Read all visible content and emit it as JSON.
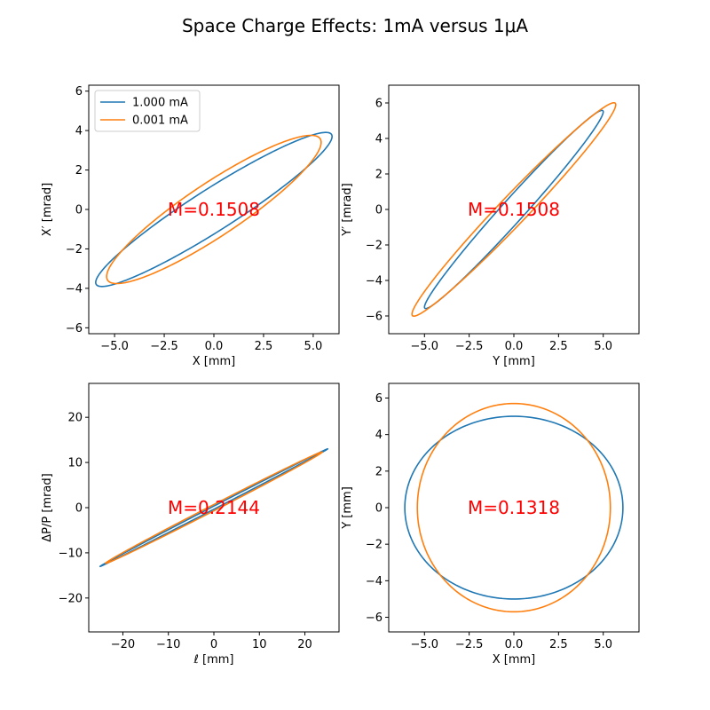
{
  "figure": {
    "suptitle": "Space Charge Effects: 1mA versus 1μA"
  },
  "colors": {
    "series_1": "#1f77b4",
    "series_2": "#ff7f0e",
    "annotation": "#ff0000"
  },
  "chart_data": [
    {
      "type": "line",
      "panel": "top-left",
      "xlabel": "X [mm]",
      "ylabel": "X′ [mrad]",
      "xlim": [
        -6.3,
        6.3
      ],
      "ylim": [
        -6.3,
        6.3
      ],
      "xticks": [
        -5.0,
        -2.5,
        0.0,
        2.5,
        5.0
      ],
      "xtick_labels": [
        "−5.0",
        "−2.5",
        "0.0",
        "2.5",
        "5.0"
      ],
      "yticks": [
        -6,
        -4,
        -2,
        0,
        2,
        4,
        6
      ],
      "ytick_labels": [
        "−6",
        "−4",
        "−2",
        "0",
        "2",
        "4",
        "6"
      ],
      "annotation": {
        "text": "M=0.1508",
        "x": 0.0,
        "y": 0.0
      },
      "legend": {
        "placement": "upper-left",
        "entries": [
          "1.000 mA",
          "0.001 mA"
        ]
      },
      "series": [
        {
          "name": "1.000 mA",
          "shape": "ellipse",
          "extreme_points": [
            [
              5.9,
              3.7
            ],
            [
              3.0,
              3.7
            ],
            [
              -5.9,
              -3.7
            ],
            [
              -3.0,
              -3.7
            ],
            [
              6.0,
              3.6
            ],
            [
              -6.0,
              -3.6
            ]
          ],
          "matrix": {
            "a": 5.95,
            "b": 0.0,
            "c": 3.7,
            "d": 1.25
          }
        },
        {
          "name": "0.001 mA",
          "shape": "ellipse",
          "extreme_points": [
            [
              4.9,
              3.4
            ],
            [
              -4.9,
              -3.4
            ]
          ],
          "matrix": {
            "a": 5.4,
            "b": 0.0,
            "c": 3.4,
            "d": 1.6
          }
        }
      ]
    },
    {
      "type": "line",
      "panel": "top-right",
      "xlabel": "Y [mm]",
      "ylabel": "Y′ [mrad]",
      "xlim": [
        -7.0,
        7.0
      ],
      "ylim": [
        -7.0,
        7.0
      ],
      "xticks": [
        -5.0,
        -2.5,
        0.0,
        2.5,
        5.0
      ],
      "xtick_labels": [
        "−5.0",
        "−2.5",
        "0.0",
        "2.5",
        "5.0"
      ],
      "yticks": [
        -6,
        -4,
        -2,
        0,
        2,
        4,
        6
      ],
      "ytick_labels": [
        "−6",
        "−4",
        "−2",
        "0",
        "2",
        "4",
        "6"
      ],
      "annotation": {
        "text": "M=0.1508",
        "x": 0.0,
        "y": 0.0
      },
      "series": [
        {
          "name": "1.000 mA",
          "shape": "ellipse",
          "matrix": {
            "a": 5.0,
            "b": 0.0,
            "c": 5.5,
            "d": 0.95
          }
        },
        {
          "name": "0.001 mA",
          "shape": "ellipse",
          "matrix": {
            "a": 5.7,
            "b": 0.0,
            "c": 5.9,
            "d": 1.15
          }
        }
      ]
    },
    {
      "type": "line",
      "panel": "bottom-left",
      "xlabel": "ℓ [mm]",
      "ylabel": "ΔP/P [mrad]",
      "xlim": [
        -27.5,
        27.5
      ],
      "ylim": [
        -27.5,
        27.5
      ],
      "xticks": [
        -20,
        -10,
        0,
        10,
        20
      ],
      "xtick_labels": [
        "−20",
        "−10",
        "0",
        "10",
        "20"
      ],
      "yticks": [
        -20,
        -10,
        0,
        10,
        20
      ],
      "ytick_labels": [
        "−20",
        "−10",
        "0",
        "10",
        "20"
      ],
      "annotation": {
        "text": "M=0.2144",
        "x": 0.0,
        "y": 0.0
      },
      "series": [
        {
          "name": "1.000 mA",
          "shape": "ellipse",
          "matrix": {
            "a": 25.0,
            "b": 0.0,
            "c": 13.0,
            "d": 0.35
          }
        },
        {
          "name": "0.001 mA",
          "shape": "ellipse",
          "matrix": {
            "a": 23.8,
            "b": 0.0,
            "c": 12.3,
            "d": 0.7
          }
        }
      ]
    },
    {
      "type": "line",
      "panel": "bottom-right",
      "xlabel": "X [mm]",
      "ylabel": "Y [mm]",
      "xlim": [
        -7.0,
        7.0
      ],
      "ylim": [
        -6.8,
        6.8
      ],
      "xticks": [
        -5.0,
        -2.5,
        0.0,
        2.5,
        5.0
      ],
      "xtick_labels": [
        "−5.0",
        "−2.5",
        "0.0",
        "2.5",
        "5.0"
      ],
      "yticks": [
        -6,
        -4,
        -2,
        0,
        2,
        4,
        6
      ],
      "ytick_labels": [
        "−6",
        "−4",
        "−2",
        "0",
        "2",
        "4",
        "6"
      ],
      "annotation": {
        "text": "M=0.1318",
        "x": 0.0,
        "y": 0.0
      },
      "series": [
        {
          "name": "1.000 mA",
          "shape": "ellipse",
          "matrix": {
            "a": 6.1,
            "b": 0.0,
            "c": 0.0,
            "d": 5.0
          }
        },
        {
          "name": "0.001 mA",
          "shape": "ellipse",
          "matrix": {
            "a": 5.4,
            "b": 0.0,
            "c": 0.0,
            "d": 5.7
          }
        }
      ]
    }
  ]
}
